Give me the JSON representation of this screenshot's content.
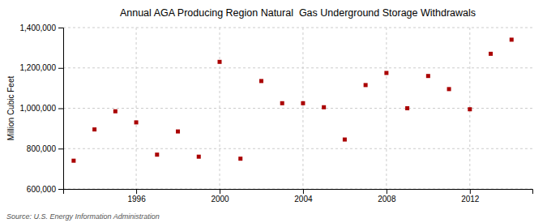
{
  "chart_data": {
    "type": "scatter",
    "title": "Annual AGA Producing Region Natural  Gas Underground Storage Withdrawals",
    "ylabel": "Million Cubic Feet",
    "source": "Source: U.S. Energy Information Administration",
    "x": [
      1993,
      1994,
      1995,
      1996,
      1997,
      1998,
      1999,
      2000,
      2001,
      2002,
      2003,
      2004,
      2005,
      2006,
      2007,
      2008,
      2009,
      2010,
      2011,
      2012,
      2013,
      2014
    ],
    "values": [
      740000,
      895000,
      985000,
      930000,
      770000,
      885000,
      760000,
      1230000,
      750000,
      1135000,
      1025000,
      1025000,
      1005000,
      845000,
      1115000,
      1175000,
      1000000,
      1160000,
      1095000,
      995000,
      1270000,
      1340000
    ],
    "color": "#AA0000",
    "marker": "square",
    "xlim": [
      1992.5,
      2015
    ],
    "xticks": [
      1996,
      2000,
      2004,
      2008,
      2012
    ],
    "ylim": [
      600000,
      1400000
    ],
    "yticks": [
      {
        "value": 600000,
        "label": "600,000"
      },
      {
        "value": 800000,
        "label": "800,000"
      },
      {
        "value": 1000000,
        "label": "1,000,000"
      },
      {
        "value": 1200000,
        "label": "1,200,000"
      },
      {
        "value": 1400000,
        "label": "1,400,000"
      }
    ],
    "grid": true
  }
}
